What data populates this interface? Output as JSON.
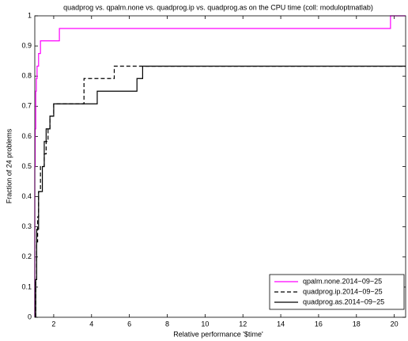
{
  "chart_data": {
    "type": "step",
    "title": "quadprog vs. qpalm.none vs. quadprog.ip vs. quadprog.as on the CPU time (coll: moduloptmatlab)",
    "xlabel": "Relative performance '$time'",
    "ylabel": "Fraction of 24 problems",
    "xlim": [
      1,
      20.6
    ],
    "xticks": [
      2,
      4,
      6,
      8,
      10,
      12,
      14,
      16,
      18,
      20
    ],
    "ylim": [
      0,
      1
    ],
    "yticks": [
      0,
      0.1,
      0.2,
      0.3,
      0.4,
      0.5,
      0.6,
      0.7,
      0.8,
      0.9,
      1
    ],
    "grid": false,
    "legend_position": "lower-right",
    "series": [
      {
        "name": "qpalm.none.2014−09−25",
        "color": "#ff00ff",
        "linestyle": "solid",
        "x": [
          1,
          1.02,
          1.05,
          1.08,
          1.12,
          1.2,
          1.3,
          2.3,
          19.8
        ],
        "values": [
          0.5,
          0.625,
          0.75,
          0.792,
          0.833,
          0.875,
          0.917,
          0.958,
          1
        ]
      },
      {
        "name": "quadprog.ip.2014−09−25",
        "color": "#000000",
        "linestyle": "dashed",
        "x": [
          1.05,
          1.1,
          1.15,
          1.2,
          1.3,
          1.5,
          1.6,
          1.7,
          1.8,
          2.0,
          3.6,
          5.2
        ],
        "values": [
          0.125,
          0.25,
          0.333,
          0.417,
          0.5,
          0.542,
          0.583,
          0.625,
          0.667,
          0.708,
          0.792,
          0.833
        ]
      },
      {
        "name": "quadprog.as.2014−09−25",
        "color": "#000000",
        "linestyle": "solid",
        "x": [
          1.05,
          1.1,
          1.2,
          1.4,
          1.5,
          1.6,
          1.8,
          2.0,
          4.3,
          6.4,
          6.7
        ],
        "values": [
          0.125,
          0.292,
          0.417,
          0.5,
          0.583,
          0.625,
          0.667,
          0.708,
          0.75,
          0.792,
          0.833
        ]
      }
    ]
  }
}
